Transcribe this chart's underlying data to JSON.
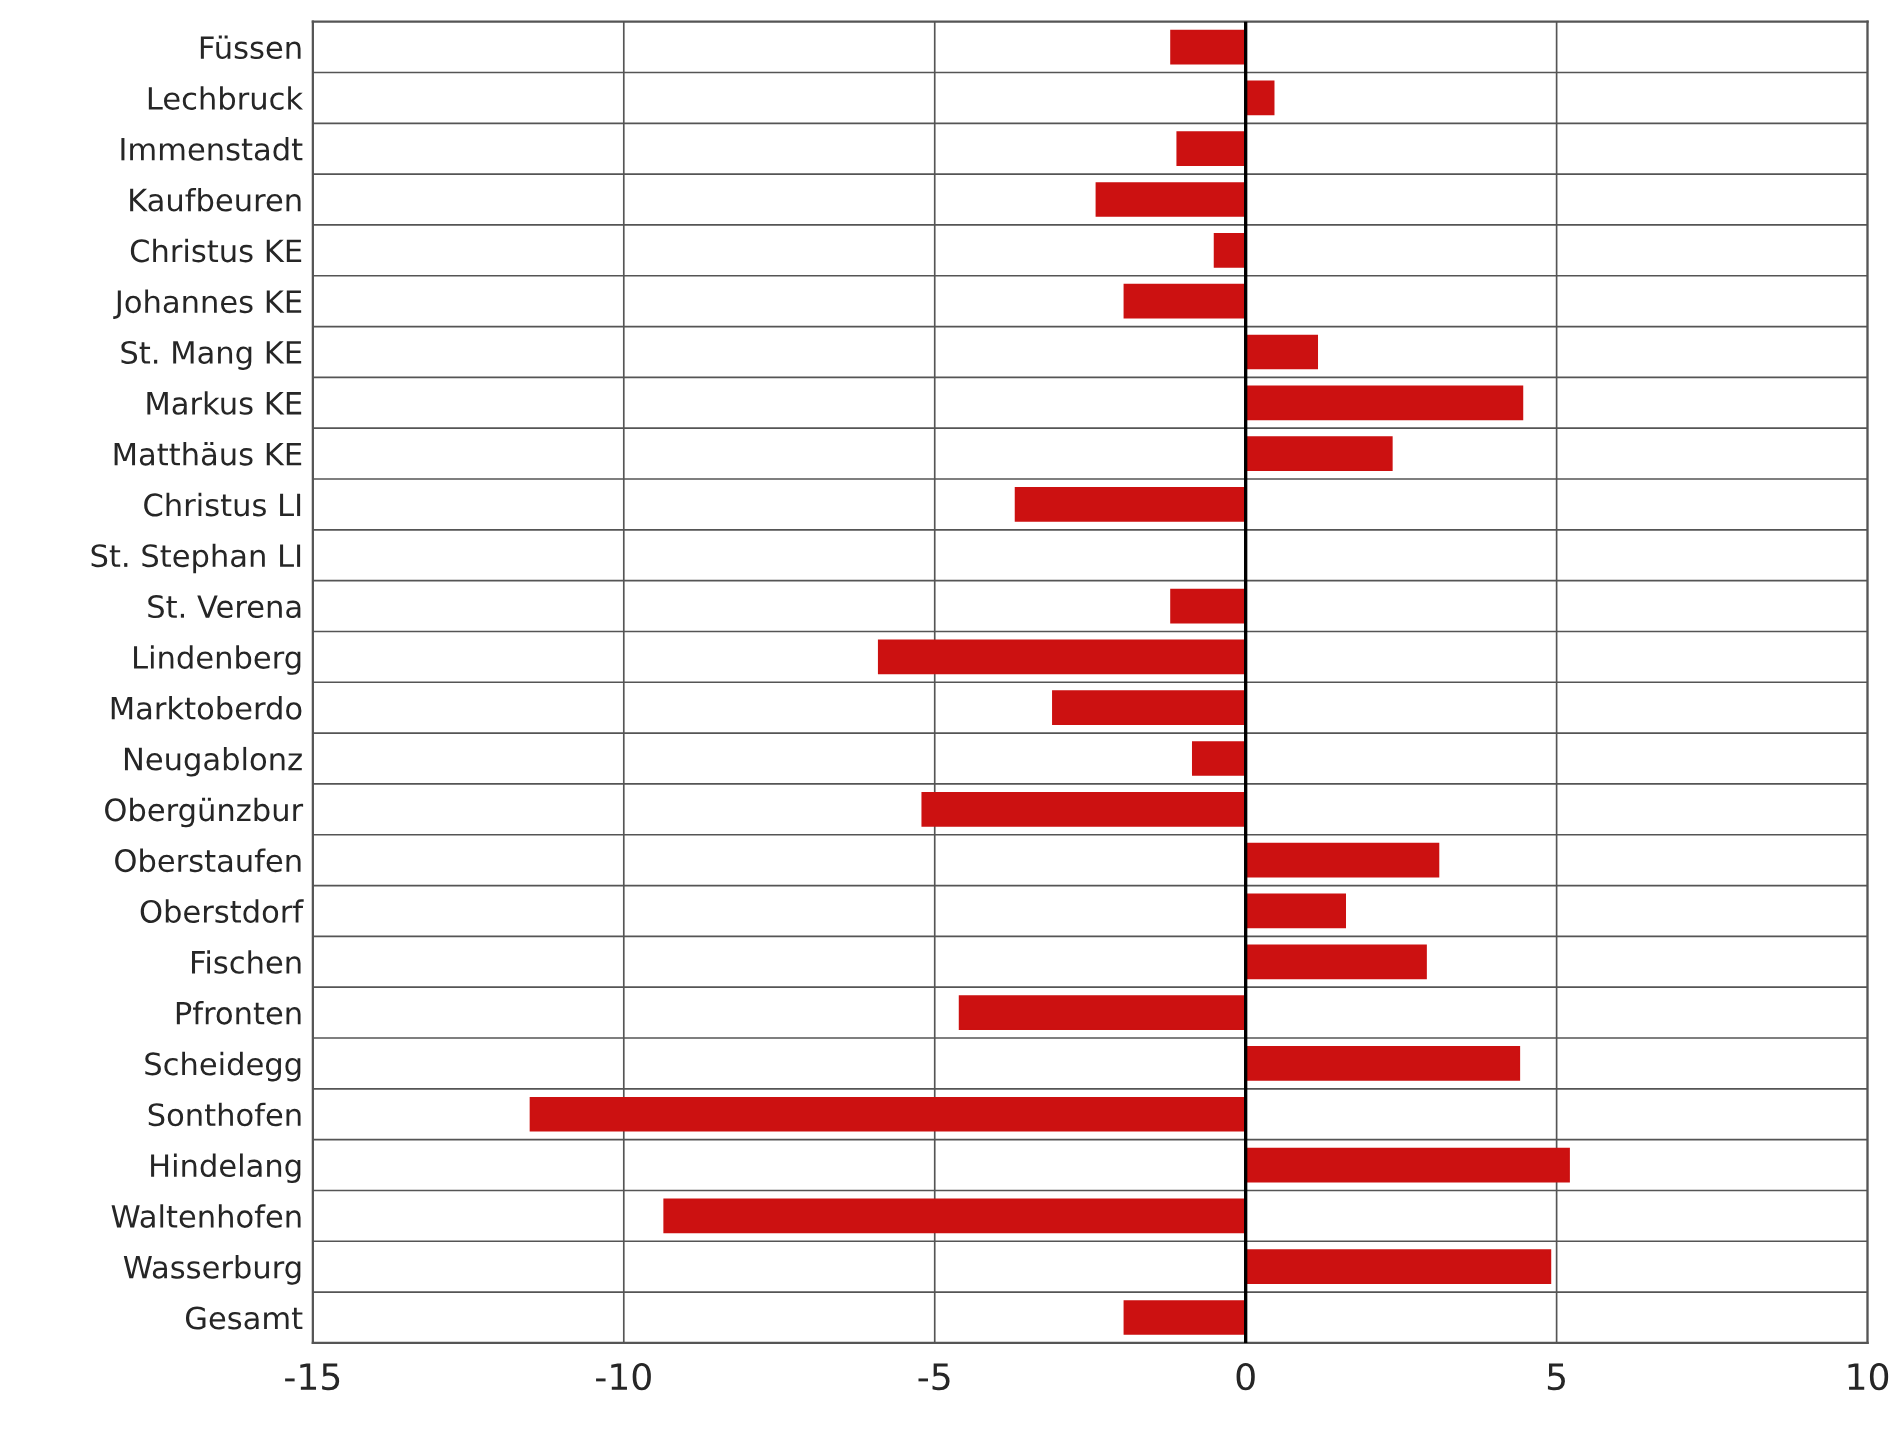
{
  "chart_data": {
    "type": "bar",
    "orientation": "horizontal",
    "categories": [
      "Füssen",
      "Lechbruck",
      "Immenstadt",
      "Kaufbeuren",
      "Christus KE",
      "Johannes KE",
      "St. Mang KE",
      "Markus KE",
      "Matthäus KE",
      "Christus LI",
      "St. Stephan LI",
      "St. Verena",
      "Lindenberg",
      "Marktoberdo",
      "Neugablonz",
      "Obergünzbur",
      "Oberstaufen",
      "Oberstdorf",
      "Fischen",
      "Pfronten",
      "Scheidegg",
      "Sonthofen",
      "Hindelang",
      "Waltenhofen",
      "Wasserburg",
      "Gesamt"
    ],
    "values": [
      -1.2,
      0.45,
      -1.1,
      -2.4,
      -0.5,
      -1.95,
      1.15,
      4.45,
      2.35,
      -3.7,
      0,
      -1.2,
      -5.9,
      -3.1,
      -0.85,
      -5.2,
      3.1,
      1.6,
      2.9,
      -4.6,
      4.4,
      -11.5,
      5.2,
      -9.35,
      4.9,
      -1.95
    ],
    "color": "#cc1111",
    "xlim": [
      -15,
      10
    ],
    "xticks": [
      -15,
      -10,
      -5,
      0,
      5,
      10
    ],
    "grid": true
  }
}
